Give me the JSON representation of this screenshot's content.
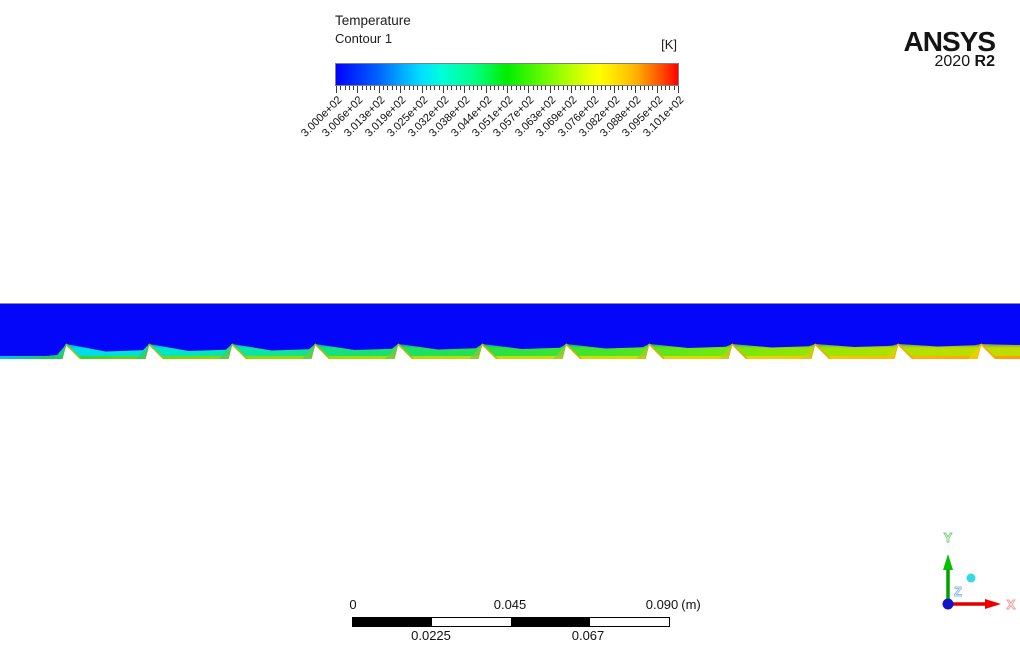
{
  "legend": {
    "title": "Temperature",
    "subtitle": "Contour 1",
    "unit": "[K]",
    "tick_labels": [
      "3.000e+02",
      "3.006e+02",
      "3.013e+02",
      "3.019e+02",
      "3.025e+02",
      "3.032e+02",
      "3.038e+02",
      "3.044e+02",
      "3.051e+02",
      "3.057e+02",
      "3.063e+02",
      "3.069e+02",
      "3.076e+02",
      "3.082e+02",
      "3.088e+02",
      "3.095e+02",
      "3.101e+02"
    ],
    "colormap": {
      "style": "rainbow",
      "low_color": "#0000ff",
      "mid_color": "#00ee00",
      "high_color": "#ff0000"
    }
  },
  "branding": {
    "name": "ANSYS",
    "version": "2020",
    "release": "R2"
  },
  "contour_field": {
    "variable": "Temperature",
    "unit": "K",
    "min_label": "3.000e+02",
    "max_label": "3.101e+02",
    "ribs_visible": 12,
    "free_stream_color": "#0306f8",
    "hot_wall_color": "#ff9c00"
  },
  "scale_ruler": {
    "top_labels": [
      "0",
      "0.045",
      "0.090"
    ],
    "unit": "(m)",
    "bottom_labels": [
      "0.0225",
      "0.067"
    ]
  },
  "triad": {
    "x": "X",
    "y": "Y",
    "z": "Z",
    "x_color": "#e00000",
    "y_color": "#00b400",
    "z_color": "#1414c8",
    "probe_color": "#38d8e0"
  }
}
